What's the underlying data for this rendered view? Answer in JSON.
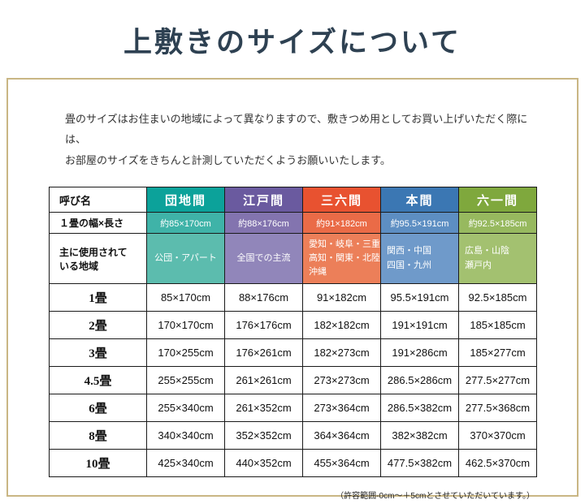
{
  "page": {
    "title": "上敷きのサイズについて",
    "intro_line1": "畳のサイズはお住まいの地域によって異なりますので、敷きつめ用としてお買い上げいただく際には、",
    "intro_line2": "お部屋のサイズをきちんと計測していただくようお願いいたします。",
    "footnote": "（許容範囲-0cm～＋5cmとさせていただいています。）"
  },
  "table": {
    "corner_label": "呼び名",
    "width_label": "１畳の幅×長さ",
    "region_label_lines": [
      "主に使用されて",
      "いる地域"
    ],
    "columns": [
      {
        "name": "団地間",
        "size": "約85×170cm",
        "region_lines": [
          "公団・アパート"
        ],
        "colors": {
          "header": "#0ca29a",
          "size": "#3fb3a8",
          "region": "#5cbcae"
        }
      },
      {
        "name": "江戸間",
        "size": "約88×176cm",
        "region_lines": [
          "全国での主流"
        ],
        "colors": {
          "header": "#6a5a9f",
          "size": "#8374af",
          "region": "#9186ba"
        }
      },
      {
        "name": "三六間",
        "size": "約91×182cm",
        "region_lines": [
          "愛知・岐阜・三重",
          "高知・関東・北陸",
          "沖縄"
        ],
        "colors": {
          "header": "#e85230",
          "size": "#ea6b47",
          "region": "#ec7f59"
        }
      },
      {
        "name": "本間",
        "size": "約95.5×191cm",
        "region_lines": [
          "関西・中国",
          "四国・九州"
        ],
        "colors": {
          "header": "#3b77b3",
          "size": "#5d8ec2",
          "region": "#6f9aca"
        }
      },
      {
        "name": "六一間",
        "size": "約92.5×185cm",
        "region_lines": [
          "広島・山陰",
          "瀬戸内"
        ],
        "colors": {
          "header": "#7fa83d",
          "size": "#97b95f",
          "region": "#a3c170"
        }
      }
    ],
    "rows": [
      {
        "label": "1畳",
        "values": [
          "85×170cm",
          "88×176cm",
          "91×182cm",
          "95.5×191cm",
          "92.5×185cm"
        ]
      },
      {
        "label": "2畳",
        "values": [
          "170×170cm",
          "176×176cm",
          "182×182cm",
          "191×191cm",
          "185×185cm"
        ]
      },
      {
        "label": "3畳",
        "values": [
          "170×255cm",
          "176×261cm",
          "182×273cm",
          "191×286cm",
          "185×277cm"
        ]
      },
      {
        "label": "4.5畳",
        "values": [
          "255×255cm",
          "261×261cm",
          "273×273cm",
          "286.5×286cm",
          "277.5×277cm"
        ]
      },
      {
        "label": "6畳",
        "values": [
          "255×340cm",
          "261×352cm",
          "273×364cm",
          "286.5×382cm",
          "277.5×368cm"
        ]
      },
      {
        "label": "8畳",
        "values": [
          "340×340cm",
          "352×352cm",
          "364×364cm",
          "382×382cm",
          "370×370cm"
        ]
      },
      {
        "label": "10畳",
        "values": [
          "425×340cm",
          "440×352cm",
          "455×364cm",
          "477.5×382cm",
          "462.5×370cm"
        ]
      }
    ]
  }
}
